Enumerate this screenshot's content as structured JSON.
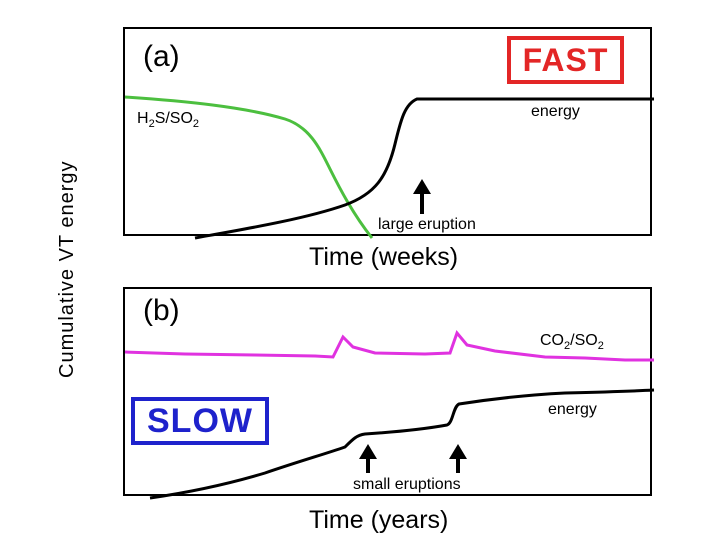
{
  "y_axis_label": "Cumulative VT energy",
  "panel_a": {
    "label": "(a)",
    "tag": "FAST",
    "gas_ratio": {
      "main": "H",
      "sub1": "2",
      "mid": "S/SO",
      "sub2": "2"
    },
    "energy_label": "energy",
    "arrow_label": "large eruption",
    "x_label": "Time (weeks)"
  },
  "panel_b": {
    "label": "(b)",
    "tag": "SLOW",
    "gas_ratio": {
      "main": "CO",
      "sub1": "2",
      "mid": "/SO",
      "sub2": "2"
    },
    "energy_label": "energy",
    "arrow_label": "small eruptions",
    "x_label": "Time (years)"
  },
  "colors": {
    "h2s_curve": "#4cbf3f",
    "co2_curve": "#e032e0",
    "energy_curve": "#000000",
    "fast": "#e32626",
    "slow": "#1e22cc"
  }
}
